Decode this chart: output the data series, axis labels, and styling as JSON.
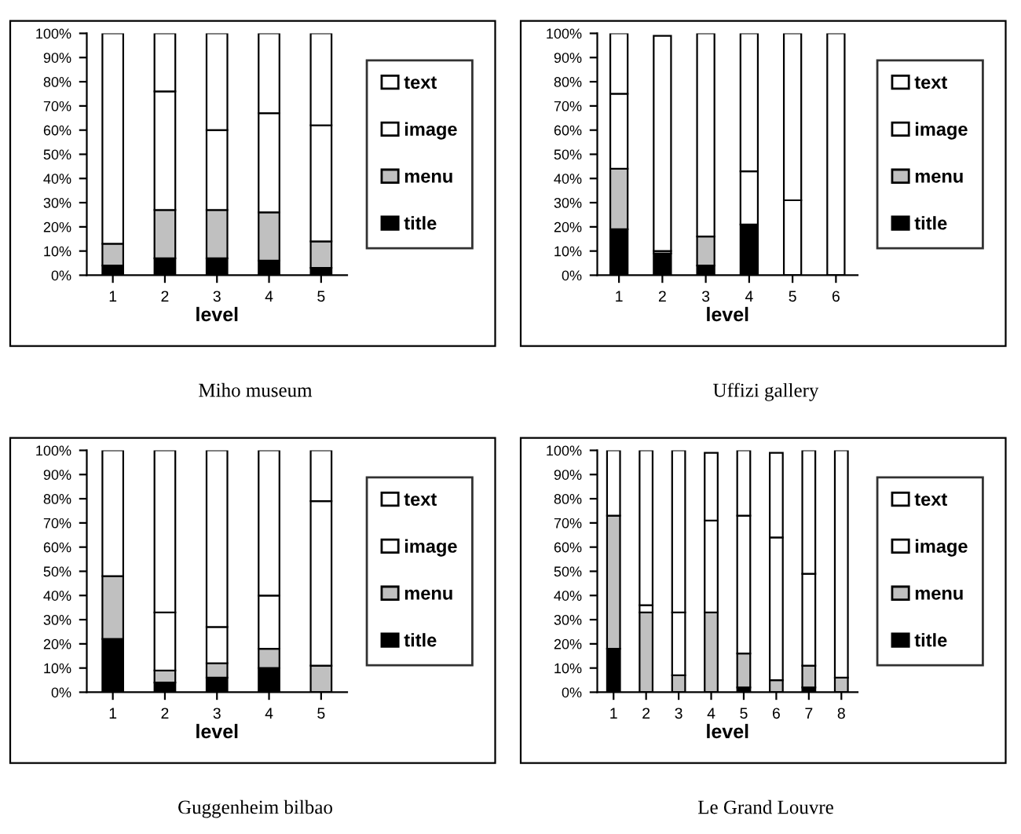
{
  "chart_data": [
    {
      "type": "bar",
      "stacked": true,
      "title": "Miho museum",
      "xlabel": "level",
      "categories": [
        "1",
        "2",
        "3",
        "4",
        "5"
      ],
      "legend": "right",
      "grid": false,
      "ylim": [
        0,
        100
      ],
      "yticks": [
        {
          "value": 0,
          "label": "0%"
        },
        {
          "value": 10,
          "label": "10%"
        },
        {
          "value": 20,
          "label": "20%"
        },
        {
          "value": 30,
          "label": "30%"
        },
        {
          "value": 40,
          "label": "40%"
        },
        {
          "value": 50,
          "label": "50%"
        },
        {
          "value": 60,
          "label": "60%"
        },
        {
          "value": 70,
          "label": "70%"
        },
        {
          "value": 80,
          "label": "80%"
        },
        {
          "value": 90,
          "label": "90%"
        },
        {
          "value": 100,
          "label": "100%"
        }
      ],
      "series": [
        {
          "name": "title",
          "color": "#000000",
          "values": [
            4,
            7,
            7,
            6,
            3
          ]
        },
        {
          "name": "menu",
          "color": "#c0c0c0",
          "values": [
            9,
            20,
            20,
            20,
            11
          ]
        },
        {
          "name": "image",
          "color": "#ffffff",
          "values": [
            87,
            49,
            33,
            41,
            48
          ]
        },
        {
          "name": "text",
          "color": "#ffffff",
          "values": [
            0,
            24,
            40,
            33,
            38
          ]
        }
      ]
    },
    {
      "type": "bar",
      "stacked": true,
      "title": "Uffizi gallery",
      "xlabel": "level",
      "categories": [
        "1",
        "2",
        "3",
        "4",
        "5",
        "6"
      ],
      "legend": "right",
      "grid": false,
      "ylim": [
        0,
        100
      ],
      "yticks": [
        {
          "value": 0,
          "label": "0%"
        },
        {
          "value": 10,
          "label": "10%"
        },
        {
          "value": 20,
          "label": "20%"
        },
        {
          "value": 30,
          "label": "30%"
        },
        {
          "value": 40,
          "label": "40%"
        },
        {
          "value": 50,
          "label": "50%"
        },
        {
          "value": 60,
          "label": "60%"
        },
        {
          "value": 70,
          "label": "70%"
        },
        {
          "value": 80,
          "label": "80%"
        },
        {
          "value": 90,
          "label": "90%"
        },
        {
          "value": 100,
          "label": "100%"
        }
      ],
      "series": [
        {
          "name": "title",
          "color": "#000000",
          "values": [
            19,
            9,
            4,
            21,
            0,
            0
          ]
        },
        {
          "name": "menu",
          "color": "#c0c0c0",
          "values": [
            25,
            1,
            12,
            0,
            0,
            0
          ]
        },
        {
          "name": "image",
          "color": "#ffffff",
          "values": [
            31,
            null,
            0,
            22,
            31,
            100
          ]
        },
        {
          "name": "text",
          "color": "#ffffff",
          "values": [
            25,
            89,
            84,
            57,
            69,
            0
          ]
        }
      ]
    },
    {
      "type": "bar",
      "stacked": true,
      "title": "Guggenheim bilbao",
      "xlabel": "level",
      "categories": [
        "1",
        "2",
        "3",
        "4",
        "5"
      ],
      "legend": "right",
      "grid": false,
      "ylim": [
        0,
        100
      ],
      "yticks": [
        {
          "value": 0,
          "label": "0%"
        },
        {
          "value": 10,
          "label": "10%"
        },
        {
          "value": 20,
          "label": "20%"
        },
        {
          "value": 30,
          "label": "30%"
        },
        {
          "value": 40,
          "label": "40%"
        },
        {
          "value": 50,
          "label": "50%"
        },
        {
          "value": 60,
          "label": "60%"
        },
        {
          "value": 70,
          "label": "70%"
        },
        {
          "value": 80,
          "label": "80%"
        },
        {
          "value": 90,
          "label": "90%"
        },
        {
          "value": 100,
          "label": "100%"
        }
      ],
      "series": [
        {
          "name": "title",
          "color": "#000000",
          "values": [
            22,
            4,
            6,
            10,
            0
          ]
        },
        {
          "name": "menu",
          "color": "#c0c0c0",
          "values": [
            26,
            5,
            6,
            8,
            11
          ]
        },
        {
          "name": "image",
          "color": "#ffffff",
          "values": [
            52,
            24,
            15,
            22,
            68
          ]
        },
        {
          "name": "text",
          "color": "#ffffff",
          "values": [
            0,
            67,
            73,
            60,
            21
          ]
        }
      ]
    },
    {
      "type": "bar",
      "stacked": true,
      "title": "Le Grand Louvre",
      "xlabel": "level",
      "categories": [
        "1",
        "2",
        "3",
        "4",
        "5",
        "6",
        "7",
        "8"
      ],
      "legend": "right",
      "grid": false,
      "ylim": [
        0,
        100
      ],
      "yticks": [
        {
          "value": 0,
          "label": "0%"
        },
        {
          "value": 10,
          "label": "10%"
        },
        {
          "value": 20,
          "label": "20%"
        },
        {
          "value": 30,
          "label": "30%"
        },
        {
          "value": 40,
          "label": "40%"
        },
        {
          "value": 50,
          "label": "50%"
        },
        {
          "value": 60,
          "label": "60%"
        },
        {
          "value": 70,
          "label": "70%"
        },
        {
          "value": 80,
          "label": "80%"
        },
        {
          "value": 90,
          "label": "90%"
        },
        {
          "value": 100,
          "label": "100%"
        }
      ],
      "series": [
        {
          "name": "title",
          "color": "#000000",
          "values": [
            18,
            0,
            0,
            null,
            2,
            null,
            2,
            0
          ]
        },
        {
          "name": "menu",
          "color": "#c0c0c0",
          "values": [
            55,
            33,
            7,
            33,
            14,
            5,
            9,
            6
          ]
        },
        {
          "name": "image",
          "color": "#ffffff",
          "values": [
            27,
            3,
            26,
            38,
            57,
            59,
            38,
            94
          ]
        },
        {
          "name": "text",
          "color": "#ffffff",
          "values": [
            0,
            64,
            67,
            28,
            27,
            35,
            51,
            0
          ]
        }
      ]
    }
  ]
}
